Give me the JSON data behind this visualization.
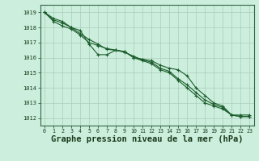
{
  "background_color": "#cceedd",
  "plot_bg_color": "#cceedd",
  "grid_color": "#aaccbb",
  "line_color": "#1a5c2a",
  "marker_color": "#1a5c2a",
  "xlabel": "Graphe pression niveau de la mer (hPa)",
  "xlabel_fontsize": 7.5,
  "ylim": [
    1011.5,
    1019.5
  ],
  "xlim": [
    -0.5,
    23.5
  ],
  "yticks": [
    1012,
    1013,
    1014,
    1015,
    1016,
    1017,
    1018,
    1019
  ],
  "xticks": [
    0,
    1,
    2,
    3,
    4,
    5,
    6,
    7,
    8,
    9,
    10,
    11,
    12,
    13,
    14,
    15,
    16,
    17,
    18,
    19,
    20,
    21,
    22,
    23
  ],
  "series": [
    [
      1019.0,
      1018.6,
      1018.4,
      1018.0,
      1017.8,
      1016.9,
      1016.2,
      1016.2,
      1016.5,
      1016.4,
      1016.0,
      1015.9,
      1015.8,
      1015.5,
      1015.3,
      1015.2,
      1014.8,
      1014.0,
      1013.5,
      1013.0,
      1012.8,
      1012.2,
      1012.2,
      1012.2
    ],
    [
      1019.0,
      1018.4,
      1018.1,
      1017.9,
      1017.5,
      1017.0,
      1016.8,
      1016.6,
      1016.5,
      1016.4,
      1016.0,
      1015.8,
      1015.6,
      1015.2,
      1015.0,
      1014.5,
      1014.0,
      1013.5,
      1013.0,
      1012.8,
      1012.6,
      1012.2,
      1012.1,
      1012.1
    ],
    [
      1019.0,
      1018.5,
      1018.3,
      1018.0,
      1017.6,
      1017.2,
      1016.9,
      1016.55,
      1016.5,
      1016.35,
      1016.1,
      1015.85,
      1015.7,
      1015.3,
      1015.1,
      1014.6,
      1014.2,
      1013.7,
      1013.2,
      1012.9,
      1012.7,
      1012.2,
      1012.1,
      1012.1
    ]
  ]
}
